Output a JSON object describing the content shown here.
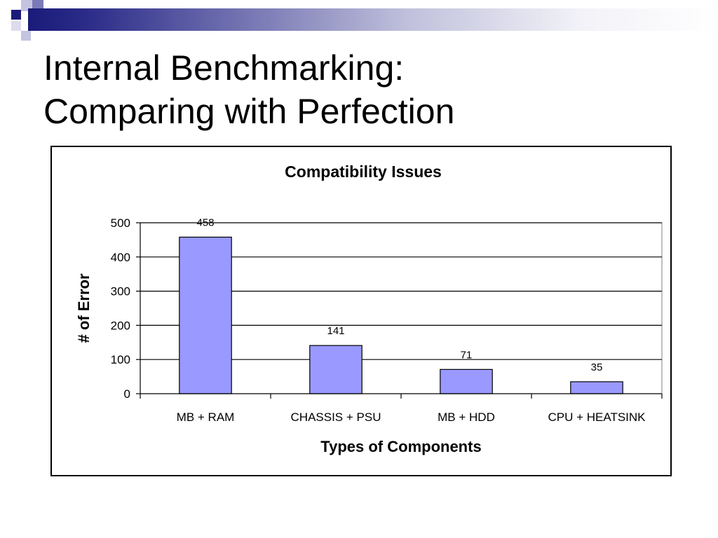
{
  "slide": {
    "title_line1": "Internal Benchmarking:",
    "title_line2": "Comparing with Perfection"
  },
  "colors": {
    "accent_dark": "#1a1a7a",
    "accent_mid": "#7a7ab8",
    "accent_light": "#c4c4e0",
    "bar_fill": "#9999ff"
  },
  "chart_data": {
    "type": "bar",
    "title": "Compatibility Issues",
    "xlabel": "Types of Components",
    "ylabel": "# of Error",
    "categories": [
      "MB + RAM",
      "CHASSIS + PSU",
      "MB + HDD",
      "CPU + HEATSINK"
    ],
    "values": [
      458,
      141,
      71,
      35
    ],
    "ylim": [
      0,
      500
    ],
    "yticks": [
      0,
      100,
      200,
      300,
      400,
      500
    ],
    "grid": true,
    "legend": "none",
    "data_labels": true
  }
}
